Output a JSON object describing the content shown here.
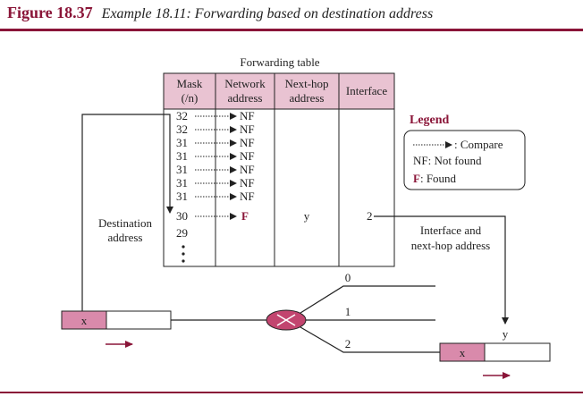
{
  "figure": {
    "number": "Figure 18.37",
    "caption": "Example 18.11: Forwarding based on destination address"
  },
  "table": {
    "title": "Forwarding table",
    "headers": {
      "mask_line1": "Mask",
      "mask_line2": "(/n)",
      "network_line1": "Network",
      "network_line2": "address",
      "nexthop_line1": "Next-hop",
      "nexthop_line2": "address",
      "interface": "Interface"
    },
    "rows": [
      {
        "mask": "32",
        "result": "NF"
      },
      {
        "mask": "32",
        "result": "NF"
      },
      {
        "mask": "31",
        "result": "NF"
      },
      {
        "mask": "31",
        "result": "NF"
      },
      {
        "mask": "31",
        "result": "NF"
      },
      {
        "mask": "31",
        "result": "NF"
      },
      {
        "mask": "31",
        "result": "NF"
      },
      {
        "mask": "30",
        "result": "F",
        "next_hop": "y",
        "interface": "2"
      },
      {
        "mask": "29",
        "result": ""
      }
    ]
  },
  "legend": {
    "title": "Legend",
    "compare": ": Compare",
    "not_found": "NF: Not found",
    "found_letter": "F",
    "found_text": ": Found"
  },
  "labels": {
    "destination_line1": "Destination",
    "destination_line2": "address",
    "interface_nexthop_line1": "Interface and",
    "interface_nexthop_line2": "next-hop address",
    "next_hop_y": "y"
  },
  "router": {
    "interfaces": [
      "0",
      "1",
      "2"
    ]
  },
  "packets": {
    "incoming_label": "x",
    "outgoing_label": "x"
  },
  "colors": {
    "accent": "#8a1538",
    "header_fill": "#e9c3d2",
    "packet_fill": "#d98aab",
    "router_fill": "#c2456f"
  }
}
